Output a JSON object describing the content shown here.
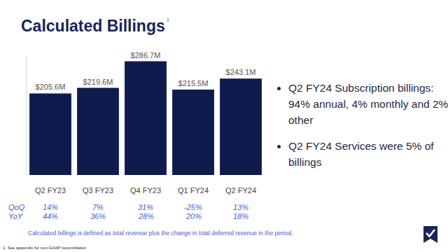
{
  "chart_data": {
    "type": "bar",
    "title": "Calculated Billings",
    "title_note": "1",
    "categories": [
      "Q2 FY23",
      "Q3 FY23",
      "Q4 FY23",
      "Q1 FY24",
      "Q2 FY24"
    ],
    "values": [
      205.6,
      219.6,
      286.7,
      215.5,
      243.1
    ],
    "value_labels": [
      "$205.6M",
      "$219.6M",
      "$286.7M",
      "$215.5M",
      "$243.1M"
    ],
    "data_labels": true,
    "color": "#0f1b4c",
    "ylim": [
      0,
      300
    ],
    "yticks": [],
    "tick_labels": "x",
    "grid": false,
    "rows": [
      {
        "name": "QoQ",
        "values": [
          14,
          7,
          31,
          -25,
          13
        ],
        "value_labels": [
          "14%",
          "7%",
          "31%",
          "-25%",
          "13%"
        ]
      },
      {
        "name": "YoY",
        "values": [
          44,
          36,
          28,
          20,
          18
        ],
        "value_labels": [
          "44%",
          "36%",
          "28%",
          "20%",
          "18%"
        ]
      }
    ],
    "bullets": [
      "Q2 FY24 Subscription billings: 94% annual, 4% monthly and 2% other",
      "Q2 FY24 Services were 5% of billings"
    ],
    "footnote": "Calculated billings is defined as total revenue plus the change in total deferred revenue in the period.",
    "source_note": "1. See appendix for non-GAAP reconciliation"
  }
}
